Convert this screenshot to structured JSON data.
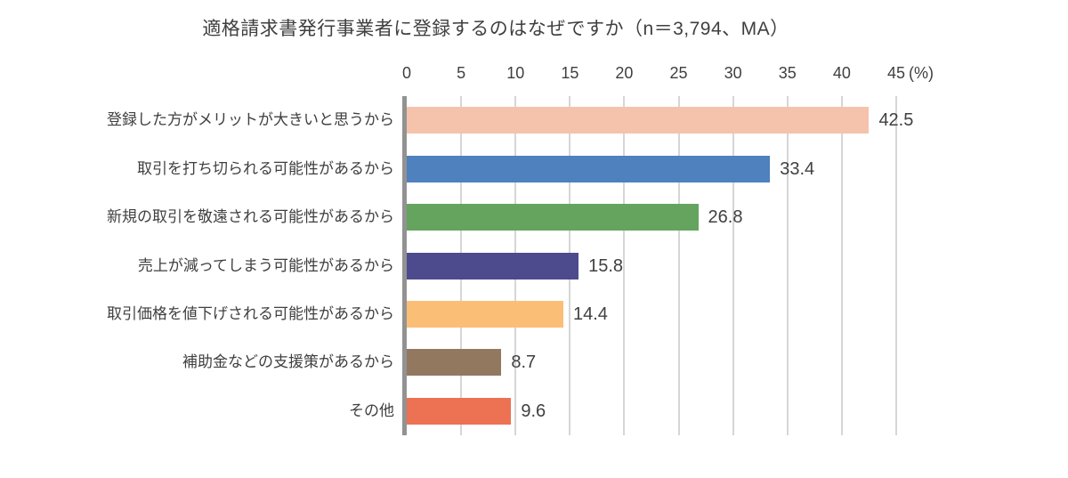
{
  "chart_data": {
    "type": "bar",
    "orientation": "horizontal",
    "title": "適格請求書発行事業者に登録するのはなぜですか（n＝3,794、MA）",
    "categories": [
      "登録した方がメリットが大きいと思うから",
      "取引を打ち切られる可能性があるから",
      "新規の取引を敬遠される可能性があるから",
      "売上が減ってしまう可能性があるから",
      "取引価格を値下げされる可能性があるから",
      "補助金などの支援策があるから",
      "その他"
    ],
    "values": [
      42.5,
      33.4,
      26.8,
      15.8,
      14.4,
      8.7,
      9.6
    ],
    "value_labels": [
      "42.5",
      "33.4",
      "26.8",
      "15.8",
      "14.4",
      "8.7",
      "9.6"
    ],
    "bar_colors": [
      "#F5C3AB",
      "#4E81BD",
      "#64A45E",
      "#4D4B8E",
      "#FBBE77",
      "#937860",
      "#ED7153"
    ],
    "x_ticks": [
      0,
      5,
      10,
      15,
      20,
      25,
      30,
      35,
      40,
      45
    ],
    "xlim": [
      0,
      45
    ],
    "unit_label": "(%)",
    "grid": true,
    "legend": false,
    "colors": {
      "axis_line": "#929292",
      "gridline": "#D6D6D6",
      "text": "#3F3F3F",
      "background": "#FFFFFF"
    }
  }
}
